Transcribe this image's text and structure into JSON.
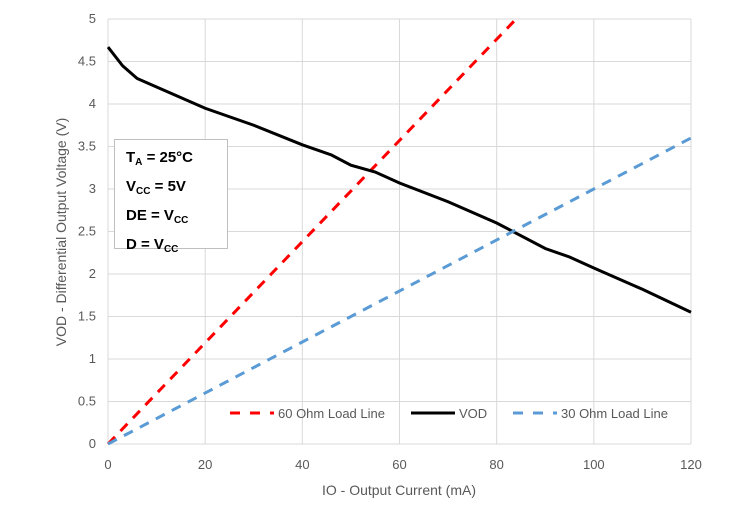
{
  "chart_data": {
    "type": "line",
    "xlabel": "IO - Output Current (mA)",
    "ylabel": "VOD - Differential Output Voltage (V)",
    "xlim": [
      0,
      120
    ],
    "ylim": [
      0,
      5
    ],
    "xticks": [
      0,
      20,
      40,
      60,
      80,
      100,
      120
    ],
    "yticks": [
      0,
      0.5,
      1,
      1.5,
      2,
      2.5,
      3,
      3.5,
      4,
      4.5,
      5
    ],
    "grid": true,
    "legend_position": "bottom-inside",
    "series": [
      {
        "name": "60 Ohm Load Line",
        "color": "#ff0000",
        "dash": true,
        "x": [
          0,
          84
        ],
        "y": [
          0,
          5
        ]
      },
      {
        "name": "VOD",
        "color": "#000000",
        "dash": false,
        "x": [
          0,
          3,
          6,
          10,
          20,
          30,
          40,
          46,
          50,
          55,
          60,
          70,
          80,
          90,
          95,
          100,
          110,
          120
        ],
        "y": [
          4.67,
          4.45,
          4.3,
          4.2,
          3.95,
          3.75,
          3.52,
          3.4,
          3.28,
          3.2,
          3.07,
          2.85,
          2.6,
          2.3,
          2.2,
          2.07,
          1.82,
          1.55
        ]
      },
      {
        "name": "30 Ohm Load Line",
        "color": "#5b9bd5",
        "dash": true,
        "x": [
          0,
          120
        ],
        "y": [
          0,
          3.6
        ]
      }
    ],
    "annotation": {
      "ta": "T",
      "ta_sub": "A",
      "ta_val": " = 25°C",
      "vcc": "V",
      "vcc_sub": "CC",
      "vcc_val": " = 5V",
      "de": "DE =  V",
      "de_sub": "CC",
      "d": "D =  V",
      "d_sub": "CC"
    }
  }
}
